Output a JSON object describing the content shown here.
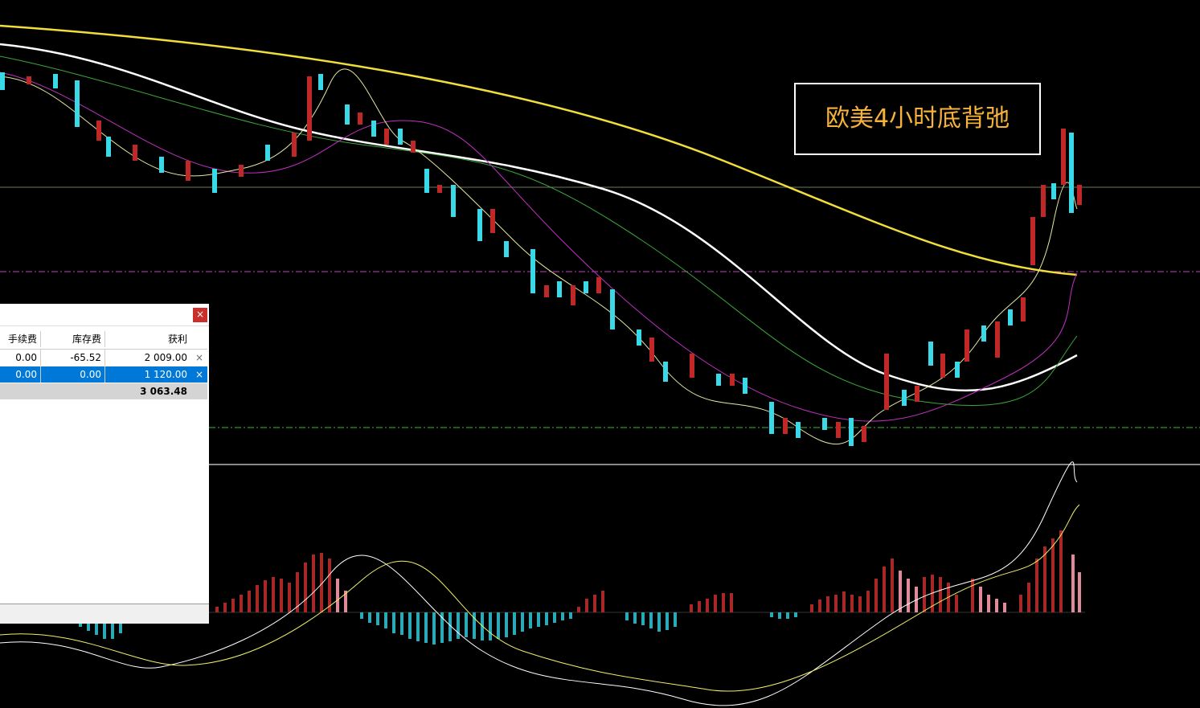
{
  "annotation": "欧美4小时底背弛",
  "panel": {
    "close": "×",
    "table": {
      "headers": [
        "手续费",
        "库存费",
        "获利"
      ],
      "rows": [
        [
          "0.00",
          "-65.52",
          "2 009.00"
        ],
        [
          "0.00",
          "0.00",
          "1 120.00"
        ]
      ],
      "remove": "×",
      "total": "3 063.48"
    }
  }
}
